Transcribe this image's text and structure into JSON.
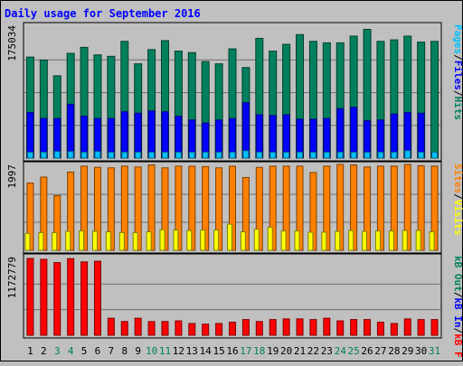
{
  "chart_data": {
    "type": "bar",
    "title": "Daily usage for September 2016",
    "days": [
      "1",
      "2",
      "3",
      "4",
      "5",
      "6",
      "7",
      "8",
      "9",
      "10",
      "11",
      "12",
      "13",
      "14",
      "15",
      "16",
      "17",
      "18",
      "19",
      "20",
      "21",
      "22",
      "23",
      "24",
      "25",
      "26",
      "27",
      "28",
      "29",
      "30",
      "31"
    ],
    "weekend_days": [
      "3",
      "4",
      "10",
      "11",
      "17",
      "18",
      "24",
      "25",
      "31"
    ],
    "panels": [
      {
        "name": "top",
        "max_label": "175034",
        "ymax": 175034,
        "legend": [
          {
            "text": "Hits",
            "color": "#00805c"
          },
          {
            "text": "/",
            "color": "#000000"
          },
          {
            "text": "Files",
            "color": "#0000ff"
          },
          {
            "text": "/",
            "color": "#000000"
          },
          {
            "text": "Pages",
            "color": "#00c0ff"
          }
        ],
        "series": [
          {
            "name": "Hits",
            "color": "#00805c",
            "values": [
              135000,
              131000,
              110000,
              140000,
              148000,
              138000,
              136000,
              156000,
              126000,
              145000,
              157000,
              143000,
              141000,
              129000,
              126000,
              146000,
              121000,
              160000,
              143000,
              152000,
              165000,
              156000,
              154000,
              154000,
              163000,
              172000,
              156000,
              158000,
              163000,
              155000,
              156000
            ]
          },
          {
            "name": "Files",
            "color": "#0000ff",
            "values": [
              61000,
              53000,
              53000,
              72000,
              56000,
              53000,
              53000,
              62000,
              60000,
              63000,
              62000,
              56000,
              51000,
              47000,
              51000,
              53000,
              74000,
              58000,
              57000,
              58000,
              52000,
              52000,
              53000,
              66000,
              68000,
              50000,
              51000,
              59000,
              61000,
              60000,
              0
            ]
          },
          {
            "name": "Pages",
            "color": "#00c0ff",
            "values": [
              8000,
              8000,
              9000,
              9000,
              8000,
              9000,
              8000,
              8000,
              8000,
              8000,
              8000,
              8000,
              8000,
              8000,
              8000,
              8000,
              10000,
              8000,
              8000,
              8000,
              8000,
              8000,
              8000,
              8000,
              8000,
              8000,
              8000,
              8000,
              10000,
              8000,
              8000
            ]
          }
        ]
      },
      {
        "name": "middle",
        "max_label": "1997",
        "ymax": 1997,
        "legend": [
          {
            "text": "Visits",
            "color": "#ffff00"
          },
          {
            "text": "/",
            "color": "#000000"
          },
          {
            "text": "Sites",
            "color": "#ff8000"
          }
        ],
        "series": [
          {
            "name": "Sites",
            "color": "#ff8000",
            "values": [
              1600,
              1740,
              1300,
              1860,
              2000,
              1970,
              1960,
              2000,
              1980,
              2030,
              1960,
              2000,
              2000,
              1990,
              1960,
              2000,
              1730,
              1970,
              2000,
              2000,
              2000,
              1850,
              2000,
              2040,
              2030,
              1980,
              2000,
              2000,
              2040,
              2010,
              2000
            ]
          },
          {
            "name": "Visits",
            "color": "#ffff00",
            "values": [
              400,
              420,
              420,
              450,
              460,
              450,
              440,
              420,
              420,
              440,
              490,
              480,
              470,
              480,
              480,
              620,
              440,
              500,
              550,
              460,
              460,
              430,
              430,
              450,
              470,
              450,
              460,
              460,
              470,
              470,
              440
            ]
          }
        ]
      },
      {
        "name": "bottom",
        "max_label": "1172779",
        "ymax": 1172779,
        "legend": [
          {
            "text": "kB F",
            "color": "#ff0000"
          },
          {
            "text": "/",
            "color": "#000000"
          },
          {
            "text": "kB In",
            "color": "#0000ff"
          },
          {
            "text": "/",
            "color": "#000000"
          },
          {
            "text": "kB Out",
            "color": "#00805c"
          }
        ],
        "series": [
          {
            "name": "kB F",
            "color": "#ff0000",
            "values": [
              1172779,
              1160000,
              1110000,
              1170000,
              1120000,
              1130000,
              260000,
              210000,
              260000,
              210000,
              210000,
              220000,
              180000,
              170000,
              180000,
              200000,
              240000,
              210000,
              240000,
              250000,
              250000,
              240000,
              260000,
              220000,
              240000,
              240000,
              200000,
              180000,
              250000,
              240000,
              240000
            ]
          }
        ]
      }
    ]
  }
}
